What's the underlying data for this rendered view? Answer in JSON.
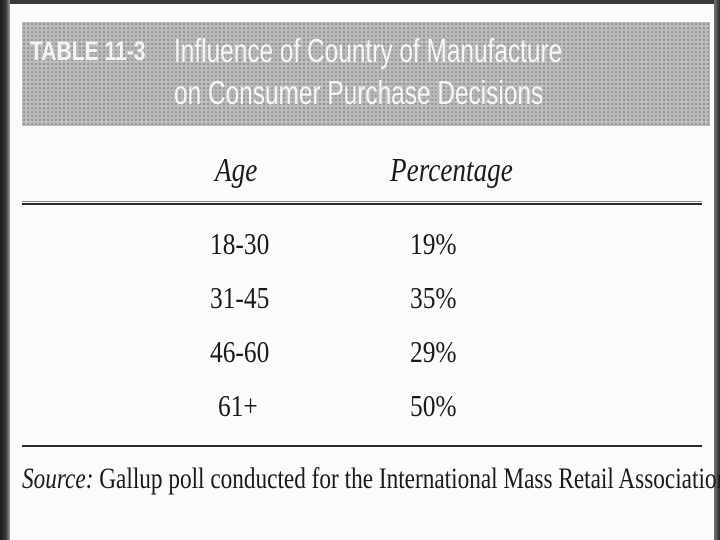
{
  "table": {
    "label": "TABLE 11-3",
    "title_line1": "Influence of Country of Manufacture",
    "title_line2": "on Consumer Purchase Decisions",
    "columns": [
      "Age",
      "Percentage"
    ],
    "rows": [
      {
        "age": "18-30",
        "percentage": "19%"
      },
      {
        "age": "31-45",
        "percentage": "35%"
      },
      {
        "age": "46-60",
        "percentage": "29%"
      },
      {
        "age": "61+",
        "percentage": "50%"
      }
    ],
    "source_label": "Source:",
    "source_text": " Gallup poll conducted for the International Mass Retail Association."
  },
  "chart_data": {
    "type": "table",
    "title": "Influence of Country of Manufacture on Consumer Purchase Decisions",
    "columns": [
      "Age",
      "Percentage"
    ],
    "rows": [
      [
        "18-30",
        "19%"
      ],
      [
        "31-45",
        "35%"
      ],
      [
        "46-60",
        "29%"
      ],
      [
        "61+",
        "50%"
      ]
    ]
  }
}
